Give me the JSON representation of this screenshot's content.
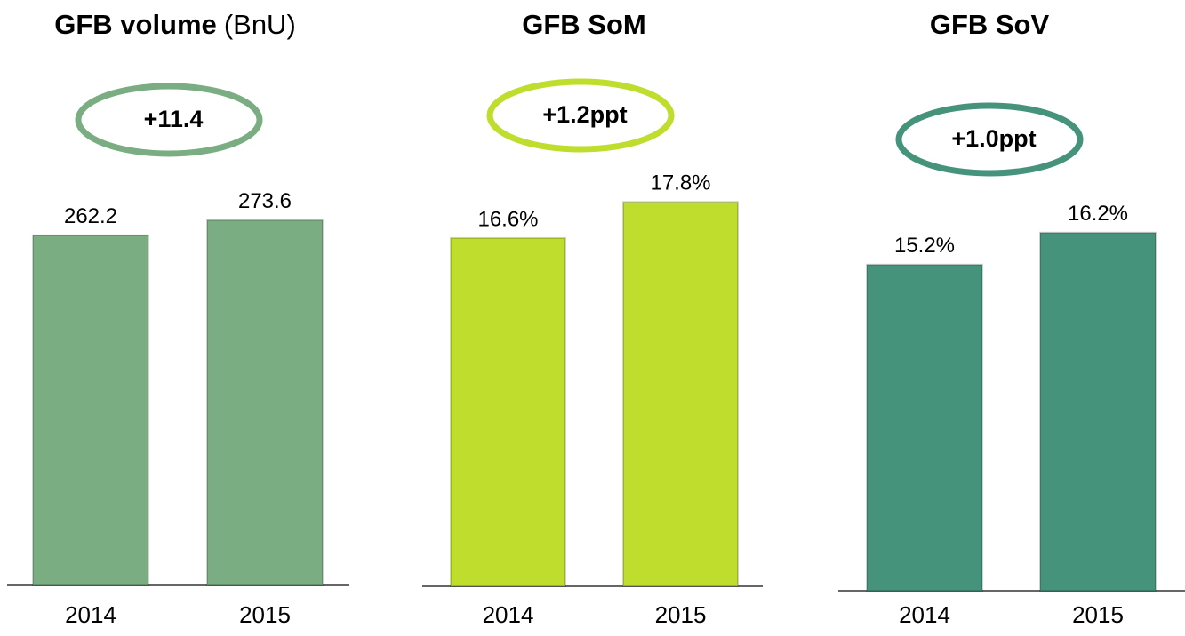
{
  "chart_data": [
    {
      "type": "bar",
      "title": "GFB volume",
      "unit": "(BnU)",
      "annotation": "+11.4",
      "categories": [
        "2014",
        "2015"
      ],
      "values": [
        262.2,
        273.6
      ],
      "color": "#7aad82",
      "ylim": [
        0,
        300
      ]
    },
    {
      "type": "bar",
      "title": "GFB SoM",
      "annotation": "+1.2ppt",
      "categories": [
        "2014",
        "2015"
      ],
      "values": [
        16.6,
        17.8
      ],
      "value_labels": [
        "16.6%",
        "17.8%"
      ],
      "color": "#bedd2c",
      "ylim": [
        5,
        20
      ]
    },
    {
      "type": "bar",
      "title": "GFB SoV",
      "annotation": "+1.0ppt",
      "categories": [
        "2014",
        "2015"
      ],
      "values": [
        15.2,
        16.2
      ],
      "value_labels": [
        "15.2%",
        "16.2%"
      ],
      "color": "#46937c",
      "ylim": [
        5,
        19
      ]
    }
  ]
}
